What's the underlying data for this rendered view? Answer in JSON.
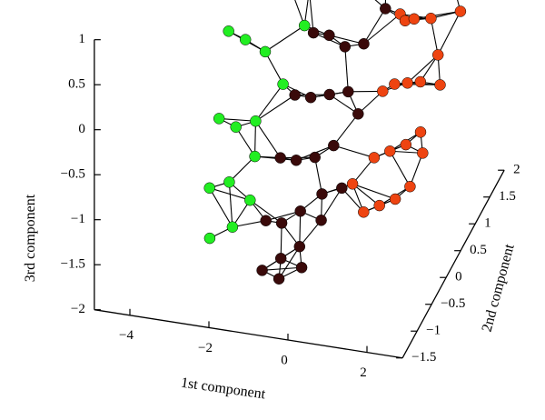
{
  "chart_data": {
    "type": "scatter",
    "projection": "3d",
    "title": "",
    "axes": {
      "x": {
        "label": "1st component",
        "ticks": [
          {
            "value": -4,
            "text": "−4"
          },
          {
            "value": -2,
            "text": "−2"
          },
          {
            "value": 0,
            "text": "0"
          },
          {
            "value": 2,
            "text": "2"
          }
        ]
      },
      "y": {
        "label": "2nd component",
        "ticks": [
          {
            "value": -1.5,
            "text": "−1.5"
          },
          {
            "value": -1,
            "text": "−1"
          },
          {
            "value": -0.5,
            "text": "−0.5"
          },
          {
            "value": 0,
            "text": "0"
          },
          {
            "value": 0.5,
            "text": "0.5"
          },
          {
            "value": 1,
            "text": "1"
          },
          {
            "value": 1.5,
            "text": "1.5"
          },
          {
            "value": 2,
            "text": "2"
          }
        ]
      },
      "z": {
        "label": "3rd component",
        "ticks": [
          {
            "value": -2,
            "text": "−2"
          },
          {
            "value": -1.5,
            "text": "−1.5"
          },
          {
            "value": -1,
            "text": "−1"
          },
          {
            "value": -0.5,
            "text": "−0.5"
          },
          {
            "value": 0,
            "text": "0"
          },
          {
            "value": 0.5,
            "text": "0.5"
          },
          {
            "value": 1,
            "text": "1"
          }
        ]
      }
    },
    "grid": false,
    "legend": "none",
    "series": [
      {
        "color": "#22ee22",
        "points": [
          [
            -3.0,
            1.6,
            1.1
          ],
          [
            -2.8,
            1.2,
            1.0
          ],
          [
            -2.3,
            1.5,
            0.8
          ],
          [
            -2.6,
            1.0,
            0.6
          ],
          [
            -2.1,
            0.9,
            0.5
          ],
          [
            -1.8,
            1.3,
            0.7
          ],
          [
            -1.6,
            0.8,
            0.4
          ],
          [
            -2.9,
            0.4,
            0.1
          ],
          [
            -2.4,
            0.3,
            0.1
          ],
          [
            -1.9,
            0.3,
            0.0
          ],
          [
            -2.7,
            -0.2,
            -0.5
          ],
          [
            -2.2,
            -0.3,
            -0.5
          ],
          [
            -1.7,
            -0.3,
            -0.4
          ],
          [
            -2.5,
            -0.8,
            -0.9
          ],
          [
            -2.0,
            -0.8,
            -0.8
          ],
          [
            -1.5,
            -0.6,
            -0.6
          ],
          [
            -2.2,
            -1.2,
            -1.2
          ],
          [
            -1.7,
            -1.1,
            -1.1
          ],
          [
            -1.3,
            1.0,
            0.3
          ],
          [
            -1.2,
            0.7,
            0.1
          ],
          [
            -1.3,
            0.1,
            -0.2
          ],
          [
            -1.4,
            -0.9,
            -0.9
          ],
          [
            -1.0,
            1.2,
            0.5
          ]
        ]
      },
      {
        "color": "#3a0a0a",
        "points": [
          [
            -0.8,
            1.4,
            0.9
          ],
          [
            -0.4,
            1.5,
            1.0
          ],
          [
            -0.1,
            1.3,
            0.8
          ],
          [
            0.3,
            1.6,
            1.0
          ],
          [
            -0.7,
            1.0,
            0.5
          ],
          [
            -0.3,
            1.0,
            0.5
          ],
          [
            0.1,
            1.0,
            0.4
          ],
          [
            0.5,
            1.2,
            0.5
          ],
          [
            -0.9,
            0.6,
            0.1
          ],
          [
            -0.5,
            0.6,
            0.1
          ],
          [
            -0.1,
            0.6,
            0.0
          ],
          [
            0.3,
            0.7,
            0.0
          ],
          [
            -1.0,
            0.1,
            -0.3
          ],
          [
            -0.6,
            0.1,
            -0.3
          ],
          [
            -0.2,
            0.2,
            -0.3
          ],
          [
            0.2,
            0.3,
            -0.3
          ],
          [
            -1.0,
            -0.4,
            -0.7
          ],
          [
            -0.6,
            -0.4,
            -0.7
          ],
          [
            -0.2,
            -0.3,
            -0.7
          ],
          [
            0.2,
            -0.2,
            -0.6
          ],
          [
            -1.0,
            -0.9,
            -1.1
          ],
          [
            -0.6,
            -0.9,
            -1.1
          ],
          [
            -0.2,
            -0.8,
            -1.0
          ],
          [
            0.2,
            -0.6,
            -0.9
          ],
          [
            -0.8,
            -1.3,
            -1.4
          ],
          [
            -0.4,
            -1.2,
            -1.3
          ],
          [
            0.0,
            -1.1,
            -1.2
          ],
          [
            0.4,
            -0.9,
            -1.0
          ],
          [
            0.6,
            1.5,
            0.8
          ],
          [
            0.7,
            0.9,
            0.3
          ],
          [
            0.6,
            0.1,
            -0.4
          ],
          [
            0.7,
            -0.6,
            -0.8
          ],
          [
            -0.5,
            1.7,
            1.1
          ],
          [
            0.0,
            1.8,
            1.1
          ],
          [
            -0.9,
            1.7,
            1.0
          ],
          [
            -1.1,
            1.5,
            0.8
          ],
          [
            0.9,
            1.3,
            0.6
          ],
          [
            -0.3,
            -1.4,
            -1.4
          ],
          [
            0.2,
            -1.3,
            -1.3
          ]
        ]
      },
      {
        "color": "#ee4411",
        "points": [
          [
            2.5,
            1.9,
            1.8
          ],
          [
            2.2,
            1.7,
            1.5
          ],
          [
            2.4,
            1.5,
            1.3
          ],
          [
            1.9,
            1.6,
            1.2
          ],
          [
            2.1,
            1.3,
            1.0
          ],
          [
            1.6,
            1.4,
            0.9
          ],
          [
            1.8,
            1.1,
            0.7
          ],
          [
            1.3,
            1.2,
            0.6
          ],
          [
            2.3,
            1.0,
            0.7
          ],
          [
            2.0,
            0.7,
            0.4
          ],
          [
            1.5,
            0.8,
            0.3
          ],
          [
            1.2,
            0.9,
            0.2
          ],
          [
            2.4,
            0.4,
            0.2
          ],
          [
            2.1,
            0.2,
            0.0
          ],
          [
            1.7,
            0.3,
            -0.1
          ],
          [
            1.3,
            0.4,
            -0.2
          ],
          [
            2.4,
            -0.2,
            -0.3
          ],
          [
            2.1,
            -0.3,
            -0.4
          ],
          [
            1.7,
            -0.3,
            -0.5
          ],
          [
            1.3,
            -0.3,
            -0.6
          ],
          [
            2.5,
            -0.7,
            -0.6
          ],
          [
            2.2,
            -0.8,
            -0.7
          ],
          [
            1.8,
            -0.8,
            -0.8
          ],
          [
            1.4,
            -0.8,
            -0.9
          ],
          [
            1.0,
            1.0,
            0.2
          ],
          [
            1.0,
            0.4,
            -0.3
          ],
          [
            2.6,
            0.9,
            0.4
          ],
          [
            2.6,
            0.2,
            0.0
          ],
          [
            2.6,
            -0.4,
            -0.4
          ],
          [
            1.1,
            1.5,
            0.7
          ],
          [
            0.9,
            -0.5,
            -0.8
          ],
          [
            1.6,
            1.8,
            1.2
          ],
          [
            1.2,
            1.7,
            1.0
          ]
        ]
      }
    ]
  }
}
